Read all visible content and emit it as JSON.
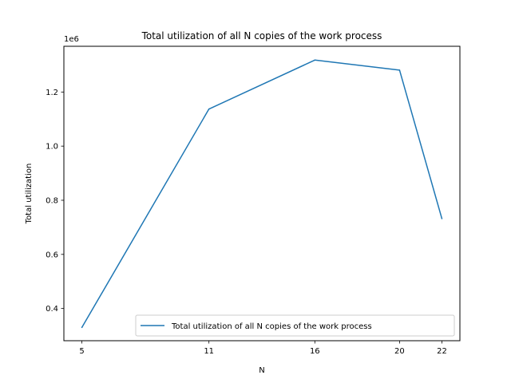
{
  "chart_data": {
    "type": "line",
    "title": "Total utilization of all N copies of the work process",
    "xlabel": "N",
    "ylabel": "Total utilization",
    "y_offset_label": "1e6",
    "x_ticks": [
      5,
      11,
      16,
      20,
      22
    ],
    "y_ticks": [
      0.4,
      0.6,
      0.8,
      1.0,
      1.2
    ],
    "y_tick_labels": [
      "0.4",
      "0.6",
      "0.8",
      "1.0",
      "1.2"
    ],
    "xlim": [
      4.15,
      22.85
    ],
    "ylim": [
      0.281,
      1.369
    ],
    "y_scale_factor": 1000000,
    "grid": false,
    "legend_position": "lower right",
    "series": [
      {
        "name": "Total utilization of all N copies of the work process",
        "color": "#1f77b4",
        "x": [
          5,
          11,
          16,
          20,
          22
        ],
        "y": [
          330000,
          1137000,
          1318000,
          1281000,
          732000
        ]
      }
    ]
  }
}
